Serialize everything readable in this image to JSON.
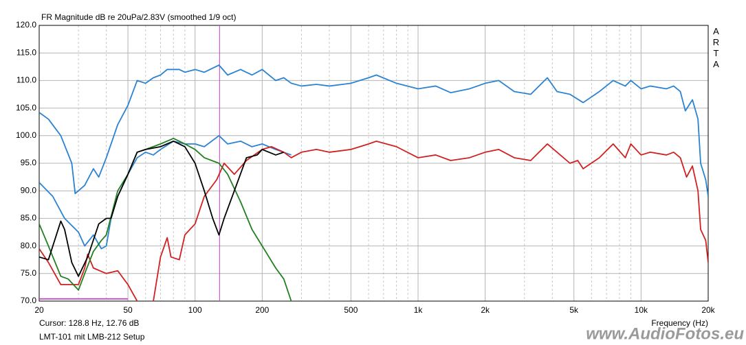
{
  "chart_data": {
    "type": "line",
    "title": "FR Magnitude dB re 20uPa/2.83V (smoothed 1/9 oct)",
    "side_label": "ARTA",
    "xlabel": "Frequency (Hz)",
    "cursor_label": "Cursor: 128.8 Hz, 12.76 dB",
    "setup_label": "LMT-101 mit LMB-212 Setup",
    "watermark": "www.AudioFotos.eu",
    "log_x": true,
    "grid": true,
    "xlim": [
      20,
      20000
    ],
    "ylim": [
      70,
      120
    ],
    "xticks": [
      20,
      50,
      100,
      200,
      500,
      {
        "value": 1000,
        "label": "1k"
      },
      {
        "value": 2000,
        "label": "2k"
      },
      {
        "value": 5000,
        "label": "5k"
      },
      {
        "value": 10000,
        "label": "10k"
      },
      {
        "value": 20000,
        "label": "20k"
      }
    ],
    "xminorticks": [
      30,
      40,
      60,
      70,
      80,
      90,
      300,
      400,
      600,
      700,
      800,
      900,
      3000,
      4000,
      6000,
      7000,
      8000,
      9000
    ],
    "yticks": [
      {
        "value": 70,
        "label": "70.0"
      },
      {
        "value": 75,
        "label": "75.0"
      },
      {
        "value": 80,
        "label": "80.0"
      },
      {
        "value": 85,
        "label": "85.0"
      },
      {
        "value": 90,
        "label": "90.0"
      },
      {
        "value": 95,
        "label": "95.0"
      },
      {
        "value": 100,
        "label": "100.0"
      },
      {
        "value": 105,
        "label": "105.0"
      },
      {
        "value": 110,
        "label": "110.0"
      },
      {
        "value": 115,
        "label": "115.0"
      },
      {
        "value": 120,
        "label": "120.0"
      }
    ],
    "cursor_x": 128.8,
    "cursor_color": "#c040c0",
    "series": [
      {
        "color": "#2a82d2",
        "x": [
          20,
          22,
          25,
          28,
          29,
          32,
          35,
          37,
          40,
          45,
          50,
          55,
          60,
          65,
          70,
          75,
          85,
          90,
          100,
          110,
          128,
          140,
          160,
          180,
          200,
          230,
          250,
          270,
          300,
          350,
          400,
          500,
          600,
          650,
          800,
          1000,
          1200,
          1400,
          1700,
          2000,
          2300,
          2700,
          3200,
          3800,
          4200,
          4800,
          5500,
          6500,
          7500,
          8500,
          9000,
          10000,
          11000,
          13000,
          14000,
          15000,
          15800,
          17000,
          18000,
          18500,
          19500,
          20000
        ],
        "values": [
          104.2,
          103,
          100,
          95,
          89.5,
          91,
          94,
          92.5,
          96,
          102,
          105.5,
          110,
          109.5,
          110.5,
          111,
          112,
          112,
          111.5,
          112,
          111.5,
          112.8,
          111,
          112,
          111,
          112,
          110,
          110.5,
          109.5,
          109,
          109.3,
          109,
          109.5,
          110.5,
          111,
          109.5,
          108.5,
          109,
          107.8,
          108.5,
          109.5,
          110,
          108,
          107.5,
          110.5,
          108,
          107.5,
          106,
          108,
          110,
          109,
          110,
          108.5,
          109,
          108.5,
          109,
          108,
          104.5,
          106.5,
          103,
          95,
          92,
          89
        ]
      },
      {
        "color": "#2a82d2",
        "x": [
          20,
          23,
          26,
          30,
          32,
          35,
          38,
          40,
          42,
          45,
          50,
          55,
          60,
          65,
          70,
          80,
          90,
          100,
          110,
          128,
          140,
          160,
          180,
          200,
          230,
          270
        ],
        "values": [
          91.5,
          89,
          85,
          82.5,
          80,
          82,
          79.5,
          80,
          85,
          89,
          93,
          96,
          97,
          96.5,
          97.5,
          99,
          98.5,
          98.5,
          98,
          100,
          98.5,
          99,
          98,
          98.5,
          97.5,
          96.5
        ]
      },
      {
        "color": "#d02020",
        "x": [
          20,
          22,
          25,
          30,
          32,
          33,
          35,
          40,
          45,
          50,
          55,
          60,
          65,
          70,
          75,
          78,
          85,
          90,
          100,
          110,
          125,
          135,
          150,
          170,
          200,
          220,
          250,
          270,
          300,
          350,
          400,
          500,
          600,
          650,
          800,
          1000,
          1200,
          1400,
          1700,
          2000,
          2300,
          2700,
          3200,
          3800,
          4200,
          4800,
          5200,
          5500,
          6500,
          7500,
          8500,
          9000,
          10000,
          11000,
          13000,
          14000,
          15000,
          16000,
          17000,
          18000,
          18500,
          19500,
          20000
        ],
        "values": [
          79.5,
          77,
          73,
          73,
          76,
          78.5,
          76,
          75,
          75.5,
          73,
          70,
          68,
          70,
          78,
          81.5,
          78,
          77.5,
          82,
          84,
          89,
          92,
          95,
          93,
          95.5,
          97.5,
          98,
          97,
          96,
          97,
          97.5,
          97,
          97.5,
          98.5,
          99,
          98,
          96,
          96.5,
          95.5,
          96,
          97,
          97.5,
          96,
          95.5,
          98.5,
          97,
          95,
          95.5,
          94,
          96,
          98.5,
          96,
          98.5,
          96.5,
          97,
          96.5,
          97,
          96,
          92.5,
          94.5,
          90,
          83,
          81,
          77
        ]
      },
      {
        "color": "#208020",
        "x": [
          20,
          22,
          25,
          27,
          30,
          32,
          35,
          38,
          40,
          45,
          50,
          55,
          60,
          70,
          80,
          90,
          100,
          110,
          128,
          140,
          160,
          180,
          200,
          230,
          250,
          270,
          280
        ],
        "values": [
          84,
          80,
          74.5,
          74,
          72,
          75,
          79,
          81,
          82,
          90,
          93,
          97,
          97.5,
          98.5,
          99.5,
          98.5,
          97.5,
          96,
          95,
          93,
          88,
          83,
          80,
          76,
          74,
          70,
          68
        ]
      },
      {
        "color": "#000000",
        "x": [
          20,
          22,
          25,
          26,
          28,
          30,
          33,
          37,
          40,
          42,
          45,
          50,
          55,
          60,
          70,
          80,
          90,
          100,
          110,
          120,
          128,
          135,
          150,
          170,
          190,
          200,
          230,
          250
        ],
        "values": [
          78,
          77.5,
          84.5,
          83,
          77,
          74.5,
          78,
          84,
          85,
          85,
          89,
          93,
          97,
          97.5,
          98,
          99,
          98,
          95,
          90,
          85,
          82,
          85,
          90,
          96,
          96.5,
          97.5,
          96.5,
          97
        ]
      },
      {
        "color": "#c040c0",
        "x": [
          20,
          50
        ],
        "values": [
          70.4,
          70.4
        ]
      }
    ]
  }
}
